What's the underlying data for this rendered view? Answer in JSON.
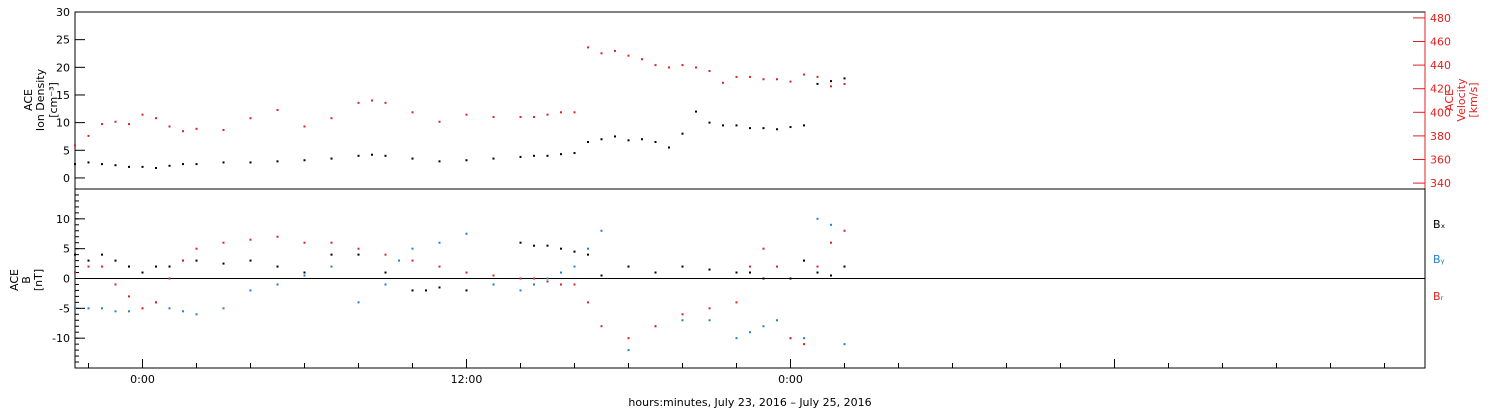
{
  "chart_data": [
    {
      "type": "scatter",
      "ylabel_lines": [
        "ACE",
        "Ion Density",
        "[cm⁻³]"
      ],
      "ylim": [
        -2,
        30
      ],
      "yticks": [
        "0",
        "5",
        "10",
        "15",
        "20",
        "25",
        "30"
      ],
      "ytick_values": [
        0,
        5,
        10,
        15,
        20,
        25,
        30
      ],
      "right_axis": {
        "ylabel_lines": [
          "ACE",
          "Velocity",
          "[km/s]"
        ],
        "ylim": [
          335,
          485
        ],
        "yticks": [
          "340",
          "360",
          "380",
          "400",
          "420",
          "440",
          "460",
          "480"
        ],
        "ytick_values": [
          340,
          360,
          380,
          400,
          420,
          440,
          460,
          480
        ],
        "color": "#e32020"
      },
      "series": [
        {
          "color": "#000000",
          "axis": "left",
          "x_hours": [
            -2.5,
            -2,
            -1.5,
            -1,
            -0.5,
            0,
            0.5,
            1,
            1.5,
            2,
            3,
            4,
            5,
            6,
            7,
            8,
            8.5,
            9,
            10,
            11,
            12,
            13,
            14,
            14.5,
            15,
            15.5,
            16,
            16.5,
            17,
            17.5,
            18,
            18.5,
            19,
            19.5,
            20,
            20.5,
            21,
            21.5,
            22,
            22.5,
            23,
            23.5,
            24,
            24.5,
            25,
            25.5,
            26
          ],
          "y": [
            2.5,
            2.8,
            2.5,
            2.3,
            2.0,
            2.0,
            1.8,
            2.2,
            2.5,
            2.5,
            2.8,
            2.8,
            3.0,
            3.2,
            3.5,
            4.0,
            4.2,
            4.0,
            3.5,
            3.0,
            3.2,
            3.5,
            3.8,
            4.0,
            4.0,
            4.3,
            4.5,
            6.5,
            7.0,
            7.5,
            6.8,
            7.0,
            6.5,
            5.5,
            8.0,
            12.0,
            10.0,
            9.5,
            9.5,
            9.0,
            9.0,
            8.8,
            9.2,
            9.5,
            17.0,
            17.5,
            18.0
          ]
        },
        {
          "color": "#e32020",
          "axis": "right",
          "x_hours": [
            -2.5,
            -2,
            -1.5,
            -1,
            -0.5,
            0,
            0.5,
            1,
            1.5,
            2,
            3,
            4,
            5,
            6,
            7,
            8,
            8.5,
            9,
            10,
            11,
            12,
            13,
            14,
            14.5,
            15,
            15.5,
            16,
            16.5,
            17,
            17.5,
            18,
            18.5,
            19,
            19.5,
            20,
            20.5,
            21,
            21.5,
            22,
            22.5,
            23,
            23.5,
            24,
            24.5,
            25,
            25.5,
            26
          ],
          "y": [
            372,
            380,
            390,
            392,
            390,
            398,
            395,
            388,
            384,
            386,
            385,
            395,
            402,
            388,
            395,
            408,
            410,
            408,
            400,
            392,
            398,
            396,
            396,
            396,
            398,
            400,
            400,
            455,
            450,
            452,
            448,
            445,
            440,
            438,
            440,
            438,
            435,
            425,
            430,
            430,
            428,
            428,
            426,
            432,
            430,
            422,
            424
          ]
        }
      ]
    },
    {
      "type": "scatter",
      "ylabel_lines": [
        "ACE",
        "B",
        "[nT]"
      ],
      "ylim": [
        -15,
        15
      ],
      "yticks": [
        "-10",
        "-5",
        "0",
        "5",
        "10"
      ],
      "ytick_values": [
        -10,
        -5,
        0,
        5,
        10
      ],
      "zero_line": true,
      "legend": [
        "Bₓ",
        "Bᵧ",
        "Bᵣ"
      ],
      "legend_colors": [
        "#000000",
        "#1f7fd6",
        "#e32020"
      ],
      "legend_placement": "right",
      "series": [
        {
          "name": "Bₓ",
          "color": "#000000",
          "x_hours": [
            -2.5,
            -2,
            -1.5,
            -1,
            -0.5,
            0,
            0.5,
            1,
            1.5,
            2,
            3,
            4,
            5,
            6,
            7,
            8,
            9,
            10,
            10.5,
            11,
            12,
            13,
            14,
            14.5,
            15,
            15.5,
            16,
            16.5,
            17,
            18,
            19,
            20,
            21,
            22,
            22.5,
            23,
            24,
            24.5,
            25,
            25.5,
            26
          ],
          "y": [
            4,
            3,
            4,
            3,
            2,
            1,
            2,
            2,
            3,
            3,
            2.5,
            3,
            2,
            1,
            4,
            4,
            1,
            -2,
            -2,
            -1.5,
            -2,
            -1,
            6,
            5.5,
            5.5,
            5,
            4.5,
            4,
            0.5,
            2,
            1,
            2,
            1.5,
            1,
            1,
            0,
            0,
            3,
            1,
            0.5,
            2
          ]
        },
        {
          "name": "Bᵧ",
          "color": "#1f7fd6",
          "x_hours": [
            -2.5,
            -2,
            -1.5,
            -1,
            -0.5,
            0,
            0.5,
            1,
            1.5,
            2,
            3,
            4,
            5,
            6,
            7,
            8,
            9,
            9.5,
            10,
            11,
            12,
            13,
            14,
            14.5,
            15,
            15.5,
            16,
            16.5,
            17,
            18,
            19,
            20,
            21,
            22,
            22.5,
            23,
            23.5,
            24,
            24.5,
            25,
            25.5,
            26
          ],
          "y": [
            -5,
            -5,
            -5,
            -5.5,
            -5.5,
            -5,
            -4,
            -5,
            -5.5,
            -6,
            -5,
            -2,
            -1,
            0.5,
            2,
            -4,
            -1,
            3,
            5,
            6,
            7.5,
            -1,
            -2,
            -1,
            0,
            1,
            2,
            5,
            8,
            -12,
            -8,
            -7,
            -7,
            -10,
            -9,
            -8,
            -7,
            -10,
            -10,
            10,
            9,
            -11
          ]
        },
        {
          "name": "Bᵣ",
          "color": "#e32020",
          "x_hours": [
            -2.5,
            -2,
            -1.5,
            -1,
            -0.5,
            0,
            0.5,
            1,
            1.5,
            2,
            3,
            4,
            5,
            6,
            7,
            8,
            9,
            10,
            11,
            12,
            13,
            14,
            14.5,
            15,
            15.5,
            16,
            16.5,
            17,
            18,
            19,
            20,
            21,
            22,
            22.5,
            23,
            23.5,
            24,
            24.5,
            25,
            25.5,
            26
          ],
          "y": [
            1,
            2,
            2,
            -1,
            -3,
            -5,
            -4,
            0,
            3,
            5,
            6,
            6.5,
            7,
            6,
            6,
            5,
            4,
            3,
            2,
            1,
            0.5,
            0,
            0,
            -0.5,
            -1,
            -1,
            -4,
            -8,
            -10,
            -8,
            -6,
            -5,
            -4,
            2,
            5,
            2,
            -10,
            -11,
            2,
            6,
            8
          ]
        }
      ]
    }
  ],
  "x_axis": {
    "range_hours": [
      -2.5,
      47.5
    ],
    "major_ticks_hours": [
      0,
      12,
      24
    ],
    "major_tick_labels": [
      "0:00",
      "12:00",
      "0:00"
    ],
    "xlabel": "hours:minutes, July 23, 2016 – July 25, 2016"
  }
}
